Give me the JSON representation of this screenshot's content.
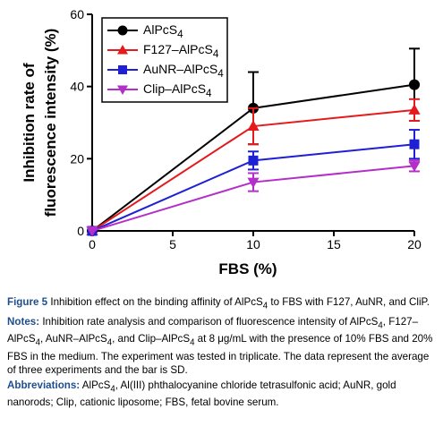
{
  "chart_data": {
    "type": "line",
    "x": [
      0,
      10,
      20
    ],
    "xlabel": "FBS (%)",
    "ylabel_lines": [
      "Inhibition rate of",
      "fluorescence intensity (%)"
    ],
    "xlim": [
      0,
      20
    ],
    "ylim": [
      0,
      60
    ],
    "xticks": [
      "0",
      "5",
      "10",
      "15",
      "20"
    ],
    "yticks": [
      "0",
      "20",
      "40",
      "60"
    ],
    "grid": false,
    "legend_position": "top-left",
    "series": [
      {
        "name_html": "AlPcS<sub>4</sub>",
        "color": "#000000",
        "marker": "circle",
        "values": [
          0,
          34,
          40.5
        ],
        "errors": [
          0,
          10,
          10
        ]
      },
      {
        "name_html": "F127–AlPcS<sub>4</sub>",
        "color": "#e41a1c",
        "marker": "triangle-up",
        "values": [
          0,
          29,
          33.5
        ],
        "errors": [
          0,
          5,
          3
        ]
      },
      {
        "name_html": "AuNR–AlPcS<sub>4</sub>",
        "color": "#1f1fd6",
        "marker": "square",
        "values": [
          0,
          19.5,
          24
        ],
        "errors": [
          0,
          2.5,
          4
        ]
      },
      {
        "name_html": "Clip–AlPcS<sub>4</sub>",
        "color": "#b42fc9",
        "marker": "triangle-down",
        "values": [
          0,
          13.5,
          18
        ],
        "errors": [
          0,
          2.5,
          1.5
        ]
      }
    ]
  },
  "caption": {
    "figure_label": "Figure 5",
    "figure_text_html": "Inhibition effect on the binding affinity of AlPcS<sub>4</sub> to FBS with F127, AuNR, and CliP.",
    "notes_label": "Notes:",
    "notes_text_html": "Inhibition rate analysis and comparison of fluorescence intensity of AlPcS<sub>4</sub>, F127–AlPcS<sub>4</sub>, AuNR–AlPcS<sub>4</sub>, and Clip–AlPcS<sub>4</sub> at 8 μg/mL with the presence of 10% FBS and 20% FBS in the medium. The experiment was tested in triplicate. The data represent the average of three experiments and the bar is SD.",
    "abbr_label": "Abbreviations:",
    "abbr_text_html": "AlPcS<sub>4</sub>, Al(III) phthalocyanine chloride tetrasulfonic acid; AuNR, gold nanorods; Clip, cationic liposome; FBS, fetal bovine serum."
  }
}
